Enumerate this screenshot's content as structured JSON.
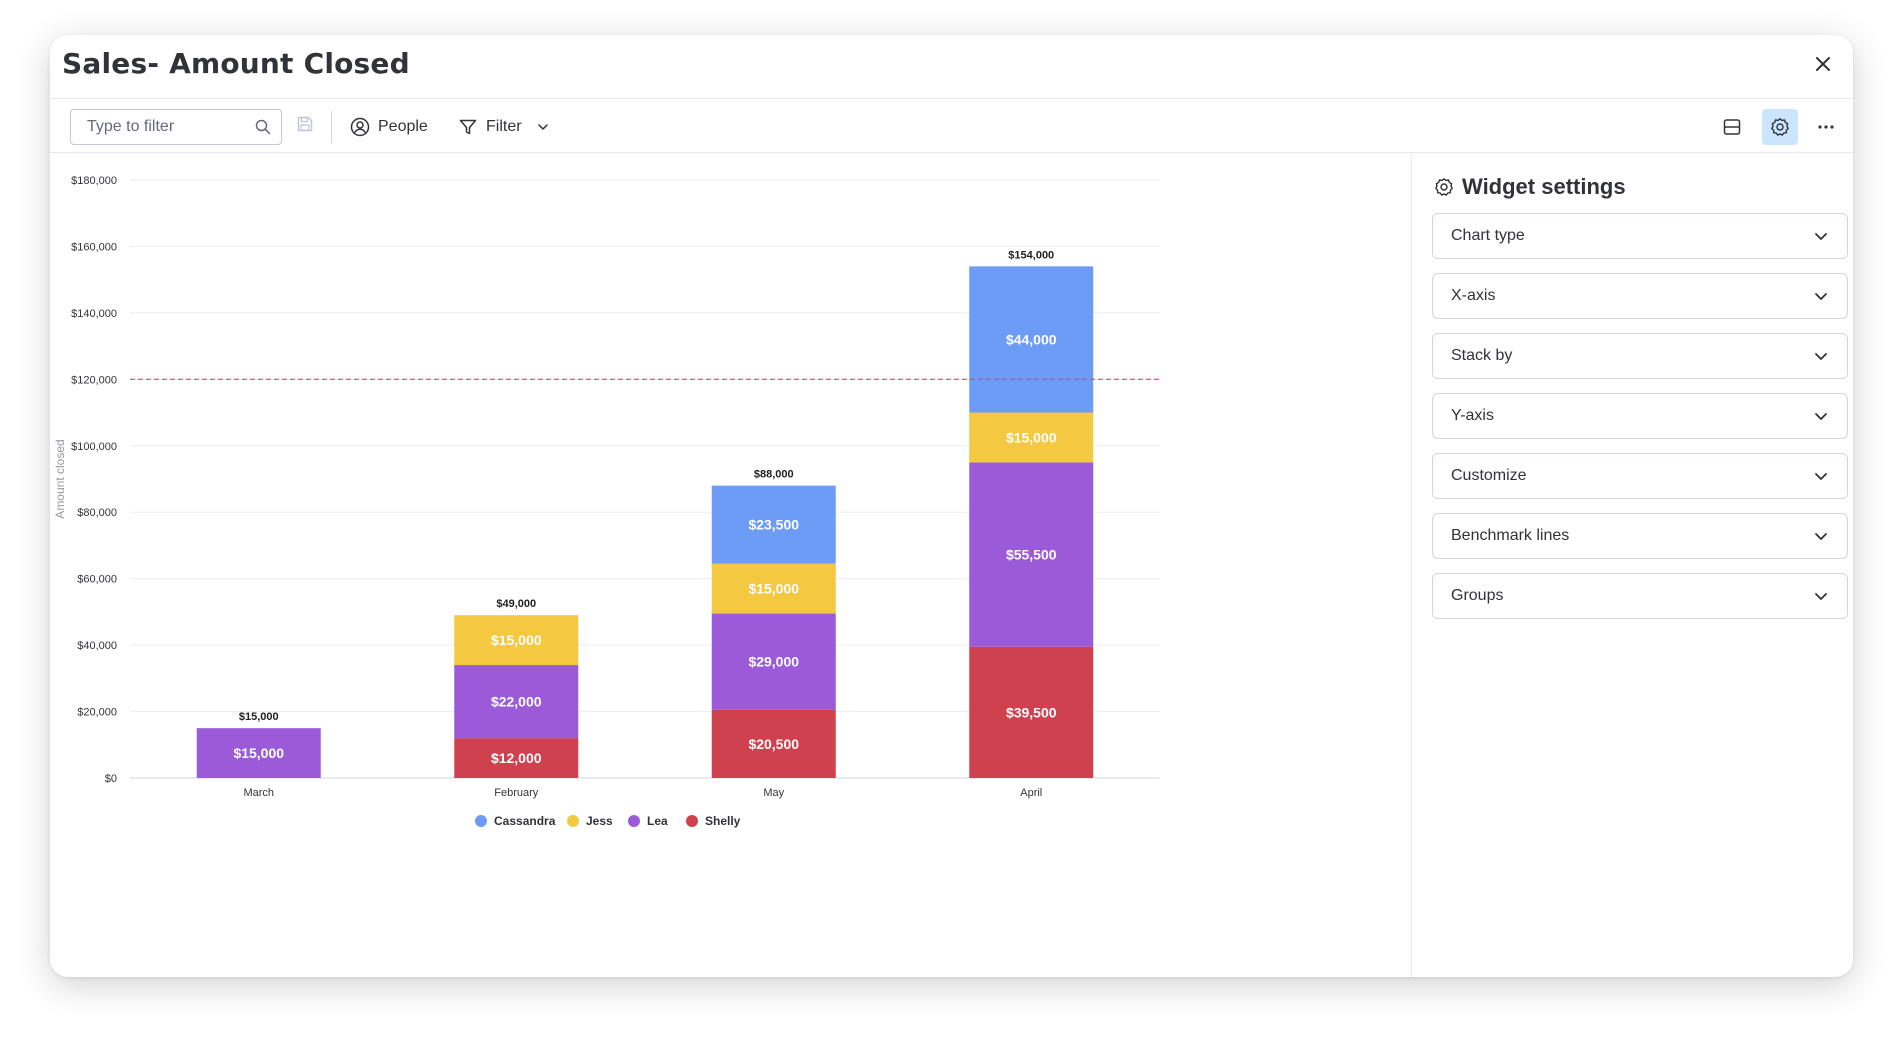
{
  "window": {
    "title": "Sales- Amount Closed"
  },
  "toolbar": {
    "search_placeholder": "Type to filter",
    "people_label": "People",
    "filter_label": "Filter"
  },
  "settings": {
    "title": "Widget settings",
    "rows": [
      {
        "label": "Chart type"
      },
      {
        "label": "X-axis"
      },
      {
        "label": "Stack by"
      },
      {
        "label": "Y-axis"
      },
      {
        "label": "Customize"
      },
      {
        "label": "Benchmark lines"
      },
      {
        "label": "Groups"
      }
    ]
  },
  "colors": {
    "Cassandra": "#6c9cf5",
    "Jess": "#f5c842",
    "Lea": "#9b5bd8",
    "Shelly": "#d0414f",
    "benchmark": "#e2445c",
    "settings_active_bg": "#cce5ff"
  },
  "chart_data": {
    "type": "bar",
    "stacked": true,
    "categories": [
      "March",
      "February",
      "May",
      "April"
    ],
    "series": [
      {
        "name": "Shelly",
        "values": [
          0,
          12000,
          20500,
          39500
        ]
      },
      {
        "name": "Lea",
        "values": [
          15000,
          22000,
          29000,
          55500
        ]
      },
      {
        "name": "Jess",
        "values": [
          0,
          15000,
          15000,
          15000
        ]
      },
      {
        "name": "Cassandra",
        "values": [
          0,
          0,
          23500,
          44000
        ]
      }
    ],
    "totals": [
      15000,
      49000,
      88000,
      154000
    ],
    "segment_labels": [
      [
        "",
        "$15,000",
        "",
        ""
      ],
      [
        "$12,000",
        "$22,000",
        "$15,000",
        ""
      ],
      [
        "$20,500",
        "$29,000",
        "$15,000",
        "$23,500"
      ],
      [
        "$39,500",
        "$55,500",
        "$15,000",
        "$44,000"
      ]
    ],
    "total_labels": [
      "$15,000",
      "$49,000",
      "$88,000",
      "$154,000"
    ],
    "ylabel": "Amount closed",
    "ylim": [
      0,
      180000
    ],
    "yticks": [
      0,
      20000,
      40000,
      60000,
      80000,
      100000,
      120000,
      140000,
      160000,
      180000
    ],
    "ytick_labels": [
      "$0",
      "$20,000",
      "$40,000",
      "$60,000",
      "$80,000",
      "$100,000",
      "$120,000",
      "$140,000",
      "$160,000",
      "$180,000"
    ],
    "benchmark": 120000,
    "legend": [
      "Cassandra",
      "Jess",
      "Lea",
      "Shelly"
    ],
    "legend_position": "bottom",
    "grid": true
  }
}
